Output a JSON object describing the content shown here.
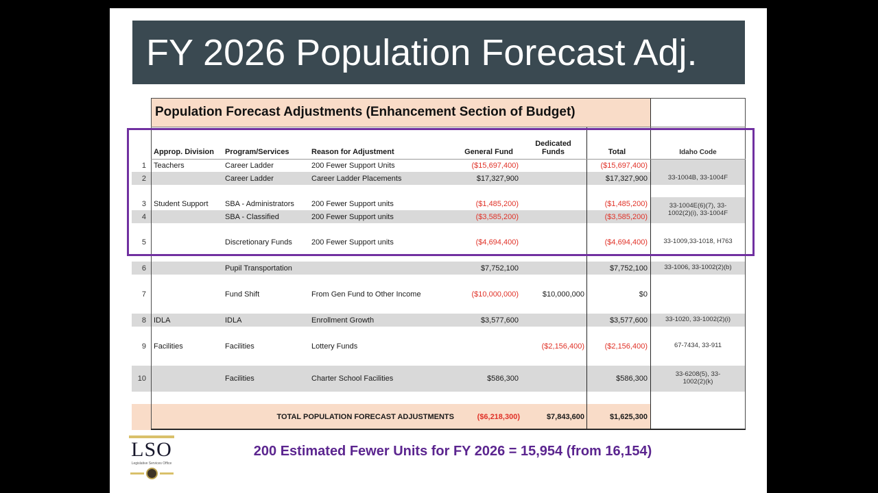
{
  "slide": {
    "title": "FY 2026 Population Forecast Adj.",
    "footnote": "200 Estimated Fewer Units for FY 2026 = 15,954 (from 16,154)"
  },
  "logo": {
    "acronym": "LSO",
    "subtitle": "Legislative Services Office"
  },
  "colors": {
    "banner_bg": "#3a4951",
    "peach_highlight": "#f9dcc8",
    "row_stripe_gray": "#d9d9d9",
    "negative_red": "#e03127",
    "highlight_purple": "#7030a0"
  },
  "table": {
    "caption": "Population Forecast Adjustments (Enhancement Section of Budget)",
    "headers": {
      "division": "Approp. Division",
      "program": "Program/Services",
      "reason": "Reason for Adjustment",
      "general_fund": "General Fund",
      "dedicated_funds": "Dedicated\nFunds",
      "total": "Total",
      "idaho_code": "Idaho Code"
    },
    "rows": [
      {
        "num": "1",
        "division": "Teachers",
        "program": "Career Ladder",
        "reason": "200 Fewer Support Units",
        "general_fund": "($15,697,400)",
        "dedicated_funds": "",
        "total": "($15,697,400)",
        "idaho_code": ""
      },
      {
        "num": "2",
        "division": "",
        "program": "Career Ladder",
        "reason": "Career Ladder Placements",
        "general_fund": "$17,327,900",
        "dedicated_funds": "",
        "total": "$17,327,900",
        "idaho_code": "33-1004B, 33-1004F"
      },
      {
        "num": "3",
        "division": "Student Support",
        "program": "SBA - Administrators",
        "reason": "200 Fewer Support units",
        "general_fund": "($1,485,200)",
        "dedicated_funds": "",
        "total": "($1,485,200)",
        "idaho_code": "33-1004E(6)(7), 33-"
      },
      {
        "num": "4",
        "division": "",
        "program": "SBA - Classified",
        "reason": "200 Fewer Support units",
        "general_fund": "($3,585,200)",
        "dedicated_funds": "",
        "total": "($3,585,200)",
        "idaho_code": "1002(2)(i), 33-1004F"
      },
      {
        "num": "5",
        "division": "",
        "program": "Discretionary Funds",
        "reason": "200 Fewer Support units",
        "general_fund": "($4,694,400)",
        "dedicated_funds": "",
        "total": "($4,694,400)",
        "idaho_code": "33-1009,33-1018, H763"
      },
      {
        "num": "6",
        "division": "",
        "program": "Pupil Transportation",
        "reason": "",
        "general_fund": "$7,752,100",
        "dedicated_funds": "",
        "total": "$7,752,100",
        "idaho_code": "33-1006, 33-1002(2)(b)"
      },
      {
        "num": "7",
        "division": "",
        "program": "Fund Shift",
        "reason": "From Gen Fund to Other Income",
        "general_fund": "($10,000,000)",
        "dedicated_funds": "$10,000,000",
        "total": "$0",
        "idaho_code": ""
      },
      {
        "num": "8",
        "division": "IDLA",
        "program": "IDLA",
        "reason": "Enrollment Growth",
        "general_fund": "$3,577,600",
        "dedicated_funds": "",
        "total": "$3,577,600",
        "idaho_code": "33-1020, 33-1002(2)(i)"
      },
      {
        "num": "9",
        "division": "Facilities",
        "program": "Facilities",
        "reason": "Lottery Funds",
        "general_fund": "",
        "dedicated_funds": "($2,156,400)",
        "total": "($2,156,400)",
        "idaho_code": "67-7434, 33-911"
      },
      {
        "num": "10",
        "division": "",
        "program": "Facilities",
        "reason": "Charter School Facilities",
        "general_fund": "$586,300",
        "dedicated_funds": "",
        "total": "$586,300",
        "idaho_code": "33-6208(5), 33-\n1002(2)(k)"
      }
    ],
    "total_row": {
      "label": "TOTAL POPULATION FORECAST ADJUSTMENTS",
      "general_fund": "($6,218,300)",
      "dedicated_funds": "$7,843,600",
      "total": "$1,625,300"
    }
  }
}
